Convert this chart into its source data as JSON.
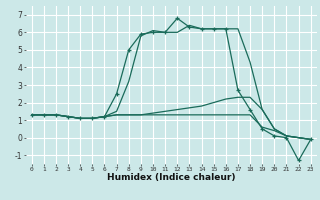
{
  "title": "",
  "xlabel": "Humidex (Indice chaleur)",
  "ylabel": "",
  "background_color": "#cce8e8",
  "grid_color": "#ffffff",
  "line_color": "#1a6b5a",
  "xlim": [
    -0.5,
    23.5
  ],
  "ylim": [
    -1.5,
    7.5
  ],
  "xticks": [
    0,
    1,
    2,
    3,
    4,
    5,
    6,
    7,
    8,
    9,
    10,
    11,
    12,
    13,
    14,
    15,
    16,
    17,
    18,
    19,
    20,
    21,
    22,
    23
  ],
  "yticks": [
    -1,
    0,
    1,
    2,
    3,
    4,
    5,
    6,
    7
  ],
  "series": [
    {
      "x": [
        0,
        1,
        2,
        3,
        4,
        5,
        6,
        7,
        8,
        9,
        10,
        11,
        12,
        13,
        14,
        15,
        16,
        17,
        18,
        19,
        20,
        21,
        22,
        23
      ],
      "y": [
        1.3,
        1.3,
        1.3,
        1.2,
        1.1,
        1.1,
        1.2,
        2.5,
        5.0,
        5.9,
        6.0,
        6.0,
        6.8,
        6.3,
        6.2,
        6.2,
        6.2,
        2.7,
        1.6,
        0.5,
        0.1,
        0.0,
        -1.3,
        -0.1
      ],
      "marker": true
    },
    {
      "x": [
        0,
        1,
        2,
        3,
        4,
        5,
        6,
        7,
        8,
        9,
        10,
        11,
        12,
        13,
        14,
        15,
        16,
        17,
        18,
        19,
        20,
        21,
        22,
        23
      ],
      "y": [
        1.3,
        1.3,
        1.3,
        1.2,
        1.1,
        1.1,
        1.2,
        1.5,
        3.2,
        5.8,
        6.1,
        6.0,
        6.0,
        6.4,
        6.2,
        6.2,
        6.2,
        6.2,
        4.3,
        1.6,
        0.5,
        0.1,
        0.0,
        -0.1
      ],
      "marker": false
    },
    {
      "x": [
        0,
        1,
        2,
        3,
        4,
        5,
        6,
        7,
        8,
        9,
        10,
        11,
        12,
        13,
        14,
        15,
        16,
        17,
        18,
        19,
        20,
        21,
        22,
        23
      ],
      "y": [
        1.3,
        1.3,
        1.3,
        1.2,
        1.1,
        1.1,
        1.2,
        1.3,
        1.3,
        1.3,
        1.4,
        1.5,
        1.6,
        1.7,
        1.8,
        2.0,
        2.2,
        2.3,
        2.3,
        1.6,
        0.5,
        0.1,
        0.0,
        -0.1
      ],
      "marker": false
    },
    {
      "x": [
        0,
        1,
        2,
        3,
        4,
        5,
        6,
        7,
        8,
        9,
        10,
        11,
        12,
        13,
        14,
        15,
        16,
        17,
        18,
        19,
        20,
        21,
        22,
        23
      ],
      "y": [
        1.3,
        1.3,
        1.3,
        1.2,
        1.1,
        1.1,
        1.2,
        1.3,
        1.3,
        1.3,
        1.3,
        1.3,
        1.3,
        1.3,
        1.3,
        1.3,
        1.3,
        1.3,
        1.3,
        0.6,
        0.4,
        0.1,
        0.0,
        -0.1
      ],
      "marker": false
    }
  ]
}
